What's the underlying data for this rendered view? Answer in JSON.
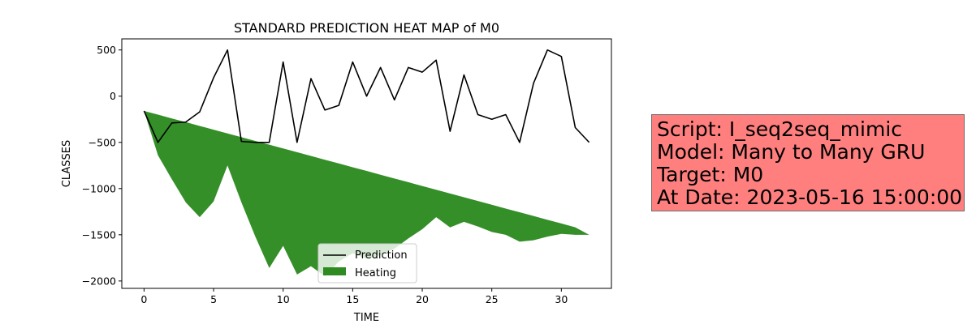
{
  "chart_data": {
    "type": "line",
    "title": "STANDARD PREDICTION HEAT MAP of M0",
    "xlabel": "TIME",
    "ylabel": "CLASSES",
    "xlim": [
      -1.6,
      33.6
    ],
    "ylim": [
      -2080,
      620
    ],
    "xticks": [
      0,
      5,
      10,
      15,
      20,
      25,
      30
    ],
    "yticks": [
      500,
      0,
      -500,
      -1000,
      -1500,
      -2000
    ],
    "grid": false,
    "legend_position": "lower center",
    "x": [
      0,
      1,
      2,
      3,
      4,
      5,
      6,
      7,
      8,
      9,
      10,
      11,
      12,
      13,
      14,
      15,
      16,
      17,
      18,
      19,
      20,
      21,
      22,
      23,
      24,
      25,
      26,
      27,
      28,
      29,
      30,
      31,
      32
    ],
    "series": [
      {
        "name": "Prediction",
        "type": "line",
        "color": "#000000",
        "values": [
          -160,
          -500,
          -290,
          -280,
          -170,
          200,
          500,
          -490,
          -500,
          -500,
          370,
          -500,
          190,
          -150,
          -100,
          370,
          0,
          310,
          -40,
          310,
          260,
          390,
          -380,
          230,
          -200,
          -250,
          -200,
          -500,
          140,
          500,
          430,
          -340,
          -500
        ]
      },
      {
        "name": "Heating",
        "type": "area",
        "color": "#2e8b22",
        "upper": [
          -160,
          -200,
          -241,
          -281,
          -322,
          -363,
          -403,
          -444,
          -484,
          -525,
          -566,
          -606,
          -647,
          -688,
          -728,
          -769,
          -809,
          -850,
          -891,
          -931,
          -972,
          -1013,
          -1053,
          -1094,
          -1134,
          -1175,
          -1216,
          -1256,
          -1297,
          -1338,
          -1378,
          -1419,
          -1500
        ],
        "lower": [
          -160,
          -640,
          -900,
          -1150,
          -1310,
          -1140,
          -750,
          -1150,
          -1520,
          -1860,
          -1620,
          -1930,
          -1840,
          -1950,
          -1790,
          -1700,
          -1760,
          -1720,
          -1650,
          -1540,
          -1440,
          -1310,
          -1420,
          -1360,
          -1410,
          -1470,
          -1500,
          -1575,
          -1560,
          -1520,
          -1490,
          -1500,
          -1500
        ]
      }
    ]
  },
  "info": {
    "script": "Script: I_seq2seq_mimic",
    "model": "Model: Many to Many GRU",
    "target": "Target: M0",
    "date": "At Date: 2023-05-16 15:00:00"
  }
}
